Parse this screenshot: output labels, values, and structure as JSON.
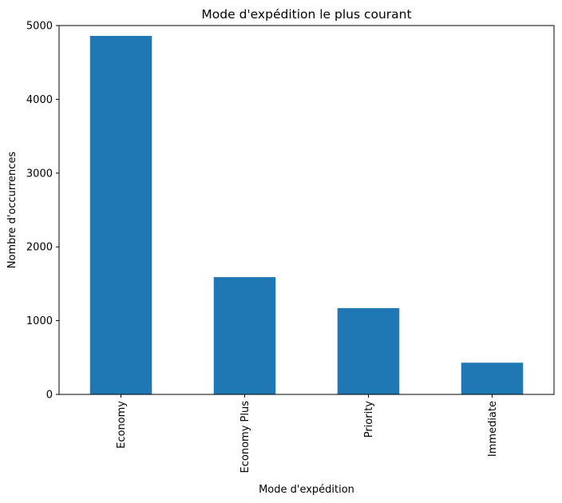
{
  "chart_data": {
    "type": "bar",
    "title": "Mode d'expédition le plus courant",
    "xlabel": "Mode d'expédition",
    "ylabel": "Nombre d'occurrences",
    "categories": [
      "Economy",
      "Economy Plus",
      "Priority",
      "Immediate"
    ],
    "values": [
      4860,
      1590,
      1170,
      430
    ],
    "ylim": [
      0,
      5000
    ],
    "yticks": [
      0,
      1000,
      2000,
      3000,
      4000,
      5000
    ],
    "yticks_labels": [
      "0",
      "1000",
      "2000",
      "3000",
      "4000",
      "5000"
    ],
    "bar_color": "#1f77b4",
    "grid": false,
    "legend": "none"
  }
}
